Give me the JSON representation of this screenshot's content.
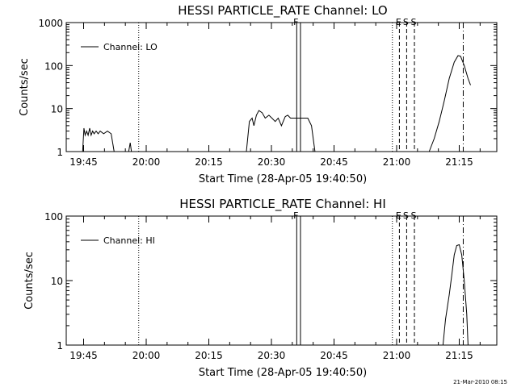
{
  "footer_timestamp": "21-Mar-2010 08:15",
  "chart_data": [
    {
      "type": "line",
      "title": "HESSI PARTICLE_RATE Channel: LO",
      "xlabel": "Start Time (28-Apr-05 19:40:50)",
      "ylabel": "Counts/sec",
      "yscale": "log",
      "xlim": [
        19.6806,
        21.4
      ],
      "ylim": [
        1,
        1000
      ],
      "x_ticks": [
        "19:45",
        "20:00",
        "20:15",
        "20:30",
        "20:45",
        "21:00",
        "21:15"
      ],
      "y_ticks": [
        "1",
        "10",
        "100",
        "1000"
      ],
      "legend": "Channel: LO",
      "legend_position": "top-left",
      "markers": [
        {
          "x": 19.97,
          "style": "dotted"
        },
        {
          "x": 20.601,
          "style": "solid",
          "label": "F"
        },
        {
          "x": 20.616,
          "style": "solid"
        },
        {
          "x": 20.983,
          "style": "dotted"
        },
        {
          "x": 21.011,
          "style": "dashed",
          "label": "E"
        },
        {
          "x": 21.04,
          "style": "dashed",
          "label": "S"
        },
        {
          "x": 21.071,
          "style": "dashed",
          "label": "S"
        },
        {
          "x": 21.266,
          "style": "dashdot"
        }
      ],
      "series": [
        {
          "segments": [
            [
              [
                19.7462,
                1
              ],
              [
                19.7512,
                3.5
              ],
              [
                19.756,
                2.4
              ],
              [
                19.762,
                3
              ],
              [
                19.768,
                2.4
              ],
              [
                19.774,
                3.5
              ],
              [
                19.78,
                2.4
              ],
              [
                19.786,
                3
              ],
              [
                19.792,
                2.6
              ],
              [
                19.8,
                3
              ],
              [
                19.808,
                2.6
              ],
              [
                19.816,
                3
              ],
              [
                19.83,
                2.6
              ],
              [
                19.845,
                3
              ],
              [
                19.86,
                2.6
              ],
              [
                19.872,
                1
              ]
            ],
            [
              [
                19.93,
                1
              ],
              [
                19.936,
                1.6
              ],
              [
                19.941,
                1
              ]
            ],
            [
              [
                20.4,
                1
              ],
              [
                20.412,
                5
              ],
              [
                20.423,
                6
              ],
              [
                20.43,
                4
              ],
              [
                20.44,
                7
              ],
              [
                20.45,
                9
              ],
              [
                20.463,
                8
              ],
              [
                20.475,
                6
              ],
              [
                20.49,
                7
              ],
              [
                20.502,
                6
              ],
              [
                20.515,
                5
              ],
              [
                20.527,
                6
              ],
              [
                20.54,
                4
              ],
              [
                20.555,
                6.5
              ],
              [
                20.565,
                7
              ],
              [
                20.576,
                6
              ],
              [
                20.6,
                6
              ],
              [
                20.62,
                6
              ],
              [
                20.645,
                6
              ],
              [
                20.66,
                4
              ],
              [
                20.674,
                1
              ]
            ],
            [
              [
                21.13,
                1
              ],
              [
                21.15,
                2
              ],
              [
                21.17,
                5
              ],
              [
                21.19,
                15
              ],
              [
                21.21,
                50
              ],
              [
                21.23,
                120
              ],
              [
                21.245,
                170
              ],
              [
                21.255,
                165
              ],
              [
                21.27,
                100
              ],
              [
                21.285,
                50
              ],
              [
                21.295,
                35
              ]
            ]
          ]
        }
      ]
    },
    {
      "type": "line",
      "title": "HESSI PARTICLE_RATE Channel: HI",
      "xlabel": "Start Time (28-Apr-05 19:40:50)",
      "ylabel": "Counts/sec",
      "yscale": "log",
      "xlim": [
        19.6806,
        21.4
      ],
      "ylim": [
        1,
        100
      ],
      "x_ticks": [
        "19:45",
        "20:00",
        "20:15",
        "20:30",
        "20:45",
        "21:00",
        "21:15"
      ],
      "y_ticks": [
        "1",
        "10",
        "100"
      ],
      "legend": "Channel: HI",
      "legend_position": "top-left",
      "markers": [
        {
          "x": 19.97,
          "style": "dotted"
        },
        {
          "x": 20.601,
          "style": "solid",
          "label": "F"
        },
        {
          "x": 20.616,
          "style": "solid"
        },
        {
          "x": 20.983,
          "style": "dotted"
        },
        {
          "x": 21.011,
          "style": "dashed",
          "label": "E"
        },
        {
          "x": 21.04,
          "style": "dashed",
          "label": "S"
        },
        {
          "x": 21.071,
          "style": "dashed",
          "label": "S"
        },
        {
          "x": 21.266,
          "style": "dashdot"
        }
      ],
      "series": [
        {
          "segments": [
            [
              [
                21.185,
                1
              ],
              [
                21.195,
                2.5
              ],
              [
                21.21,
                6
              ],
              [
                21.22,
                12
              ],
              [
                21.23,
                25
              ],
              [
                21.24,
                35
              ],
              [
                21.25,
                36
              ],
              [
                21.26,
                25
              ],
              [
                21.27,
                10
              ],
              [
                21.28,
                3
              ],
              [
                21.285,
                1
              ]
            ]
          ]
        }
      ]
    }
  ]
}
